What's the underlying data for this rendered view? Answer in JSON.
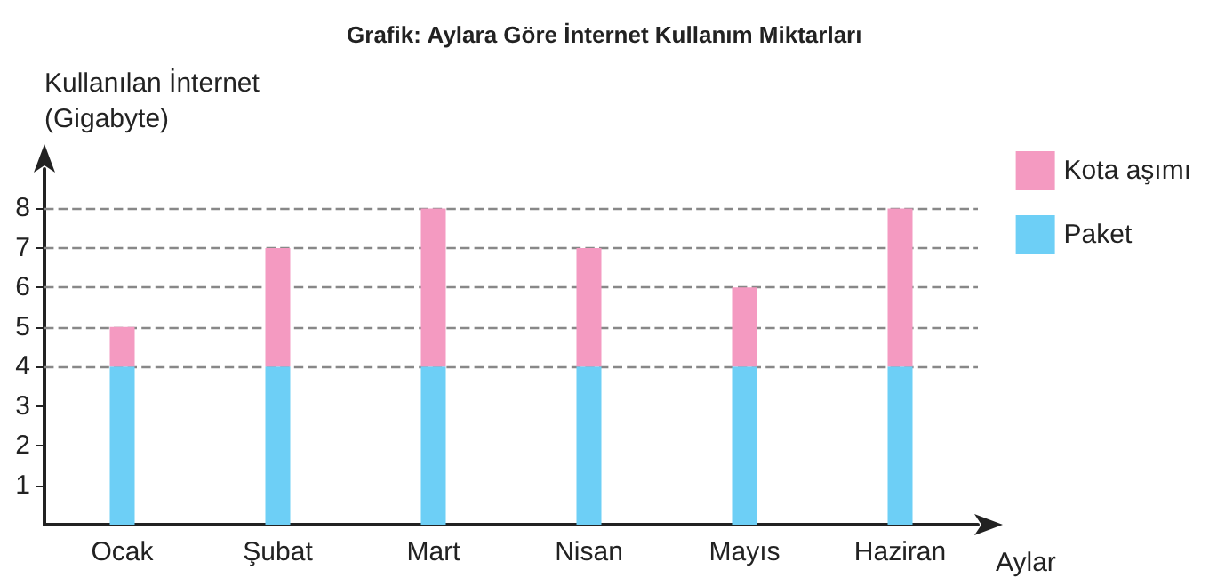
{
  "chart_data": {
    "type": "bar",
    "title": "Grafik: Aylara Göre İnternet Kullanım Miktarları",
    "xlabel": "Aylar",
    "ylabel": "Kullanılan İnternet\n(Gigabyte)",
    "categories": [
      "Ocak",
      "Şubat",
      "Mart",
      "Nisan",
      "Mayıs",
      "Haziran"
    ],
    "series": [
      {
        "name": "Paket",
        "color": "#6dcff6",
        "values": [
          4,
          4,
          4,
          4,
          4,
          4
        ]
      },
      {
        "name": "Kota aşımı",
        "color": "#f49ac1",
        "values": [
          1,
          3,
          4,
          3,
          2,
          4
        ]
      }
    ],
    "stacked": true,
    "ylim": [
      0,
      9
    ],
    "yticks": [
      1,
      2,
      3,
      4,
      5,
      6,
      7,
      8
    ],
    "grid": false,
    "legend": "top right",
    "ref_lines": [
      {
        "axis": "y",
        "value": 4,
        "line_style": "dashed"
      },
      {
        "axis": "y",
        "value": 5,
        "line_style": "dashed"
      },
      {
        "axis": "y",
        "value": 6,
        "line_style": "dashed"
      },
      {
        "axis": "y",
        "value": 7,
        "line_style": "dashed"
      },
      {
        "axis": "y",
        "value": 8,
        "line_style": "dashed"
      }
    ]
  }
}
